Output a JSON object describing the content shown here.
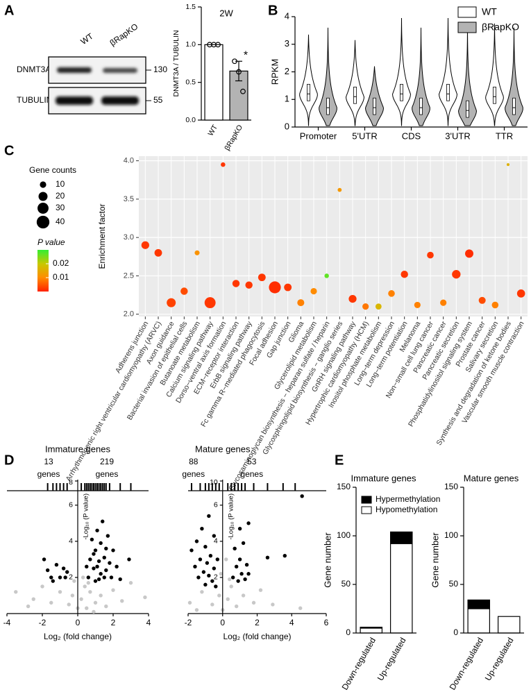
{
  "panels": [
    "A",
    "B",
    "C",
    "D",
    "E"
  ],
  "blot": {
    "lanes": [
      "WT",
      "βRapKO"
    ],
    "rows": [
      "DNMT3A",
      "TUBULIN"
    ],
    "markers": [
      130,
      55
    ]
  },
  "chart_data": [
    {
      "type": "bar",
      "title": "2W",
      "ylabel": "DNMT3A / TUBULIN",
      "categories": [
        "WT",
        "βRapKO"
      ],
      "values": [
        1.0,
        0.65
      ],
      "errors": [
        0,
        0.13
      ],
      "points": [
        [
          1.0,
          1.0,
          1.0
        ],
        [
          0.78,
          0.64,
          0.38
        ]
      ],
      "colors": [
        "#ffffff",
        "#b3b3b3"
      ],
      "annotation": "*",
      "ylim": [
        0,
        1.5
      ],
      "yticks": [
        {
          "value": 0,
          "label": "0.0"
        },
        {
          "value": 0.5,
          "label": "0.5"
        },
        {
          "value": 1,
          "label": "1.0"
        },
        {
          "value": 1.5,
          "label": "1.5"
        }
      ]
    },
    {
      "type": "violin",
      "ylabel": "RPKM",
      "categories": [
        "Promoter",
        "5'UTR",
        "CDS",
        "3'UTR",
        "TTR"
      ],
      "series": [
        {
          "name": "WT",
          "color": "#ffffff",
          "max": [
            3.35,
            3.15,
            3.95,
            3.95,
            3.75
          ],
          "median": [
            1.2,
            1.1,
            1.2,
            1.2,
            1.1
          ]
        },
        {
          "name": "βRapKO",
          "color": "#b3b3b3",
          "max": [
            3.6,
            2.2,
            3.6,
            3.7,
            3.6
          ],
          "median": [
            0.7,
            0.7,
            0.7,
            0.6,
            0.7
          ]
        }
      ],
      "ylim": [
        0,
        4
      ],
      "yticks": [
        0,
        1,
        2,
        3,
        4
      ],
      "legend": "top-right"
    },
    {
      "type": "bubble",
      "ylabel": "Enrichment factor",
      "categories": [
        "Adherens junction",
        "Arrhythmogenic right ventricular cardiomyopathy (ARVC)",
        "Axon guidance",
        "Bacterial invasion of epithelial cells",
        "Butanoate metabolism",
        "Calcium signaling pathway",
        "Dorso−ventral axis formation",
        "ECM−receptor interaction",
        "ErbB signaling pathway",
        "Fc gamma R−mediated phagocytosis",
        "Focal adhesion",
        "Gap junction",
        "Glioma",
        "Glycerolipid metabolism",
        "Glycosaminoglycan biosynthesis − heparan sulfate / heparin",
        "Glycosphingolipid biosynthesis − ganglio series",
        "GnRH signaling pathway",
        "Hypertrophic cardiomyopathy (HCM)",
        "Inositol phosphate metabolism",
        "Long−term depression",
        "Long−term potentiation",
        "Melanoma",
        "Non−small cell lung cancer",
        "Pancreatic cancer",
        "Pancreatic secretion",
        "Phosphatidylinositol signaling system",
        "Prostate cancer",
        "Salivary secretion",
        "Synthesis and degradation of ketone bodies",
        "Vascular smooth muscle contraction"
      ],
      "values": [
        2.9,
        2.8,
        2.15,
        2.3,
        2.8,
        2.15,
        3.95,
        2.4,
        2.38,
        2.48,
        2.35,
        2.35,
        2.15,
        2.3,
        2.5,
        3.62,
        2.2,
        2.1,
        2.1,
        2.27,
        2.52,
        2.12,
        2.77,
        2.15,
        2.52,
        2.79,
        2.18,
        2.12,
        3.95,
        2.27
      ],
      "sizes": [
        15,
        14,
        20,
        13,
        6,
        30,
        5,
        13,
        13,
        14,
        35,
        14,
        12,
        10,
        5,
        4,
        15,
        10,
        9,
        11,
        13,
        10,
        11,
        10,
        18,
        17,
        12,
        11,
        2,
        16
      ],
      "p_values": [
        0.002,
        0.002,
        0.003,
        0.004,
        0.011,
        0.002,
        0.002,
        0.002,
        0.002,
        0.002,
        0.001,
        0.002,
        0.009,
        0.01,
        0.027,
        0.012,
        0.002,
        0.008,
        0.017,
        0.009,
        0.002,
        0.009,
        0.002,
        0.009,
        0.002,
        0.001,
        0.004,
        0.009,
        0.016,
        0.002
      ],
      "size_legend": {
        "title": "Gene counts",
        "values": [
          10,
          20,
          30,
          40
        ]
      },
      "color_legend": {
        "title": "P value",
        "ticks": [
          0.02,
          0.01
        ],
        "clim": [
          0,
          0.03
        ],
        "colors": [
          "#ff2200",
          "#ff8c00",
          "#c8c800",
          "#33ee33"
        ]
      },
      "ylim": [
        1.97,
        4.06
      ],
      "yticks": [
        {
          "value": 2,
          "label": "2.0"
        },
        {
          "value": 2.5,
          "label": "2.5"
        },
        {
          "value": 3,
          "label": "3.0"
        },
        {
          "value": 3.5,
          "label": "3.5"
        },
        {
          "value": 4,
          "label": "4.0"
        }
      ],
      "grid": true
    },
    {
      "type": "scatter",
      "title": "Immature genes",
      "xlabel": "Log₂ (fold change)",
      "ylabel": "-Log₁₀ (P value)",
      "annotations": [
        {
          "count": 13,
          "text": "genes"
        },
        {
          "count": 219,
          "text": "genes"
        }
      ],
      "xlim": [
        -4,
        4
      ],
      "xticks": [
        -4,
        -2,
        0,
        2,
        4
      ],
      "ylim": [
        0,
        6.8
      ],
      "yticks": [
        2,
        4,
        6
      ],
      "break_tick": 8,
      "rug_x": [
        -1.7,
        -1.4,
        -1.2,
        -1.0,
        -0.8,
        -0.6,
        0.2,
        0.4,
        0.5,
        0.6,
        0.7,
        0.8,
        0.9,
        1.0,
        1.1,
        1.2,
        1.3,
        1.4,
        1.5,
        1.6,
        1.8,
        2.4,
        3.0
      ],
      "series": [
        {
          "color": "#c8c8c8",
          "x": [
            -3.5,
            -2.5,
            -2.0,
            -1.5,
            -1.0,
            -0.5,
            -0.3,
            0,
            0.2,
            0.4,
            0.5,
            0.7,
            1.0,
            1.3,
            1.6,
            2.0,
            2.5,
            3.0,
            0.3,
            0.6,
            -0.2,
            3.8,
            -2.8,
            0.9
          ],
          "values": [
            1.2,
            0.8,
            1.5,
            0.6,
            1.2,
            0.5,
            1.0,
            0.3,
            0.8,
            1.5,
            0.3,
            1.2,
            0.6,
            1.0,
            0.4,
            1.3,
            0.7,
            1.7,
            2.0,
            1.7,
            1.8,
            0.9,
            0.4,
            0.1
          ]
        },
        {
          "color": "#000000",
          "x": [
            -1.9,
            -1.7,
            -1.5,
            -1.2,
            -1.0,
            -0.8,
            -0.6,
            -1.4,
            -0.7,
            0.6,
            0.7,
            0.8,
            0.9,
            1.0,
            1.0,
            1.1,
            1.2,
            1.3,
            1.3,
            1.4,
            1.5,
            1.6,
            1.7,
            1.8,
            1.9,
            2.0,
            2.2,
            2.4,
            2.9,
            0.5,
            0.9,
            1.2,
            1.5,
            1.1,
            1.6
          ],
          "values": [
            3.0,
            2.4,
            2.0,
            2.7,
            2.0,
            2.5,
            2.3,
            1.8,
            2.0,
            2.0,
            3.0,
            4.1,
            2.5,
            3.5,
            1.8,
            4.6,
            2.9,
            2.2,
            3.9,
            5.1,
            3.1,
            2.4,
            4.3,
            2.8,
            2.0,
            3.5,
            2.6,
            1.9,
            3.0,
            2.6,
            3.3,
            1.9,
            2.0,
            2.6,
            3.6
          ]
        }
      ]
    },
    {
      "type": "scatter",
      "title": "Mature genes",
      "xlabel": "Log₂ (fold change)",
      "ylabel": "-Log₁₀ (P value)",
      "annotations": [
        {
          "count": 88,
          "text": "genes"
        },
        {
          "count": 53,
          "text": "genes"
        }
      ],
      "xlim": [
        -2,
        6
      ],
      "xticks": [
        -2,
        0,
        2,
        4,
        6
      ],
      "ylim": [
        0,
        6.8
      ],
      "yticks": [
        2,
        4,
        6
      ],
      "break_tick": 10,
      "rug_x": [
        -1.8,
        -1.3,
        -1.0,
        -0.8,
        -0.6,
        -0.4,
        -0.2,
        0.3,
        0.5,
        0.7,
        0.9,
        1.1,
        1.3,
        1.8,
        2.6,
        3.5,
        4.2
      ],
      "series": [
        {
          "color": "#c8c8c8",
          "x": [
            -1.9,
            -1.2,
            -0.6,
            -0.2,
            0,
            0.3,
            0.5,
            0.8,
            1.2,
            1.8,
            2.2,
            -0.1,
            0.2,
            0.4,
            2.9,
            4.5,
            -1.5
          ],
          "values": [
            0.6,
            1.2,
            0.5,
            1.0,
            0.2,
            0.8,
            1.5,
            0.4,
            1.0,
            0.6,
            1.3,
            2.2,
            3.0,
            1.9,
            0.5,
            0.3,
            0.2
          ]
        },
        {
          "color": "#000000",
          "x": [
            -1.8,
            -1.6,
            -1.5,
            -1.4,
            -1.3,
            -1.2,
            -1.1,
            -1.0,
            -1.0,
            -0.9,
            -0.8,
            -0.8,
            -0.7,
            -0.6,
            -0.5,
            -0.5,
            -0.4,
            -0.3,
            0.6,
            0.7,
            0.8,
            0.9,
            1.0,
            1.0,
            1.1,
            1.2,
            1.3,
            1.4,
            1.5,
            1.5,
            2.6,
            3.6,
            4.6
          ],
          "values": [
            3.5,
            2.6,
            4.0,
            2.0,
            3.0,
            4.7,
            2.3,
            3.7,
            1.6,
            2.8,
            5.4,
            2.1,
            3.2,
            1.8,
            4.3,
            2.5,
            1.5,
            3.0,
            2.0,
            3.6,
            2.6,
            1.8,
            4.7,
            3.0,
            2.2,
            3.9,
            1.9,
            2.7,
            5.0,
            2.2,
            3.1,
            3.2,
            6.5
          ]
        }
      ]
    },
    {
      "type": "stacked_bar",
      "title": "Immature genes",
      "ylabel": "Gene number",
      "categories": [
        "Down-regulated",
        "Up-regulated"
      ],
      "series": [
        {
          "name": "Hypomethylation",
          "color": "#ffffff",
          "values": [
            5,
            92
          ]
        },
        {
          "name": "Hypermethylation",
          "color": "#000000",
          "values": [
            1,
            12
          ]
        }
      ],
      "ylim": [
        0,
        150
      ],
      "yticks": [
        0,
        50,
        100,
        150
      ]
    },
    {
      "type": "stacked_bar",
      "title": "Mature genes",
      "ylabel": "Gene number",
      "categories": [
        "Down-regulated",
        "Up-regulated"
      ],
      "series": [
        {
          "color": "#ffffff",
          "values": [
            25,
            17
          ]
        },
        {
          "color": "#000000",
          "values": [
            9,
            0
          ]
        }
      ],
      "ylim": [
        0,
        150
      ],
      "yticks": [
        0,
        50,
        100,
        150
      ]
    }
  ]
}
